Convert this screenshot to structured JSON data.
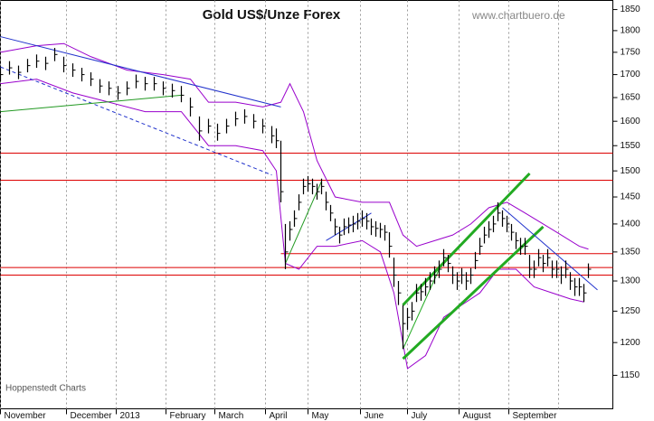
{
  "chart_data": {
    "type": "ohlc",
    "title": "Gold US$/Unze Forex",
    "watermark": "www.chartbuero.de",
    "source": "Hoppenstedt Charts",
    "log_scale": true,
    "xlim": [
      0,
      135.4
    ],
    "ylim": [
      1101,
      1872
    ],
    "yticks": [
      1150,
      1200,
      1250,
      1300,
      1350,
      1400,
      1450,
      1500,
      1550,
      1600,
      1650,
      1700,
      1750,
      1800,
      1850
    ],
    "xticks": [
      {
        "value": 0,
        "label": "November"
      },
      {
        "value": 14.6,
        "label": "December"
      },
      {
        "value": 25.6,
        "label": "2013"
      },
      {
        "value": 36.6,
        "label": "February"
      },
      {
        "value": 47.4,
        "label": "March"
      },
      {
        "value": 58.6,
        "label": "April"
      },
      {
        "value": 68,
        "label": "May"
      },
      {
        "value": 79.6,
        "label": "June"
      },
      {
        "value": 90,
        "label": "July"
      },
      {
        "value": 101.4,
        "label": "August"
      },
      {
        "value": 112.4,
        "label": "September"
      }
    ],
    "xgrid": [
      123.4
    ],
    "color": "#000000",
    "x": [
      0,
      2,
      4,
      6,
      8,
      10,
      12,
      14,
      16,
      18,
      20,
      22,
      24,
      26,
      28,
      30,
      32,
      34,
      36,
      38,
      40,
      42,
      44,
      46,
      48,
      50,
      52,
      54,
      56,
      58,
      60,
      61,
      62,
      63,
      64,
      65,
      66,
      67,
      68,
      69,
      70,
      71,
      72,
      73,
      74,
      75,
      76,
      77,
      78,
      79,
      80,
      81,
      82,
      83,
      84,
      85,
      86,
      87,
      88,
      89,
      90,
      91,
      92,
      93,
      94,
      95,
      96,
      97,
      98,
      99,
      100,
      101,
      102,
      103,
      104,
      105,
      106,
      107,
      108,
      109,
      110,
      111,
      112,
      113,
      114,
      115,
      116,
      117,
      118,
      119,
      120,
      121,
      122,
      123,
      124,
      125,
      126,
      127,
      128,
      129,
      130
    ],
    "close": [
      1700,
      1715,
      1705,
      1720,
      1730,
      1725,
      1745,
      1720,
      1710,
      1700,
      1690,
      1675,
      1670,
      1660,
      1670,
      1685,
      1680,
      1680,
      1670,
      1665,
      1655,
      1630,
      1580,
      1590,
      1575,
      1590,
      1605,
      1610,
      1600,
      1590,
      1570,
      1560,
      1460,
      1350,
      1390,
      1410,
      1440,
      1470,
      1475,
      1470,
      1460,
      1470,
      1440,
      1420,
      1395,
      1380,
      1395,
      1398,
      1400,
      1405,
      1410,
      1405,
      1395,
      1392,
      1390,
      1385,
      1360,
      1310,
      1280,
      1230,
      1240,
      1250,
      1280,
      1282,
      1290,
      1300,
      1310,
      1320,
      1340,
      1330,
      1310,
      1300,
      1310,
      1300,
      1310,
      1335,
      1360,
      1380,
      1390,
      1400,
      1420,
      1410,
      1400,
      1385,
      1370,
      1360,
      1360,
      1320,
      1320,
      1340,
      1330,
      1340,
      1320,
      1320,
      1310,
      1320,
      1300,
      1290,
      1290,
      1280,
      1320
    ],
    "high": [
      1715,
      1730,
      1720,
      1735,
      1745,
      1740,
      1760,
      1740,
      1725,
      1715,
      1705,
      1690,
      1685,
      1675,
      1685,
      1700,
      1695,
      1695,
      1685,
      1680,
      1675,
      1650,
      1610,
      1605,
      1595,
      1605,
      1620,
      1625,
      1615,
      1605,
      1590,
      1585,
      1560,
      1400,
      1405,
      1425,
      1455,
      1485,
      1490,
      1485,
      1475,
      1485,
      1460,
      1435,
      1410,
      1395,
      1410,
      1412,
      1415,
      1420,
      1425,
      1420,
      1410,
      1405,
      1402,
      1398,
      1385,
      1340,
      1300,
      1260,
      1255,
      1265,
      1295,
      1295,
      1305,
      1315,
      1325,
      1335,
      1355,
      1345,
      1325,
      1315,
      1322,
      1315,
      1322,
      1350,
      1375,
      1395,
      1405,
      1415,
      1440,
      1425,
      1415,
      1400,
      1385,
      1375,
      1375,
      1345,
      1335,
      1355,
      1345,
      1355,
      1335,
      1335,
      1325,
      1335,
      1315,
      1305,
      1305,
      1295,
      1330
    ],
    "low": [
      1685,
      1700,
      1690,
      1705,
      1715,
      1710,
      1730,
      1705,
      1695,
      1685,
      1675,
      1660,
      1655,
      1645,
      1655,
      1670,
      1665,
      1665,
      1655,
      1650,
      1640,
      1610,
      1560,
      1575,
      1560,
      1575,
      1590,
      1595,
      1585,
      1575,
      1555,
      1545,
      1440,
      1320,
      1370,
      1395,
      1425,
      1455,
      1460,
      1455,
      1445,
      1455,
      1425,
      1405,
      1380,
      1365,
      1380,
      1383,
      1385,
      1390,
      1395,
      1390,
      1380,
      1377,
      1375,
      1370,
      1340,
      1290,
      1260,
      1190,
      1220,
      1235,
      1265,
      1267,
      1275,
      1285,
      1295,
      1305,
      1325,
      1315,
      1295,
      1285,
      1295,
      1285,
      1295,
      1320,
      1345,
      1365,
      1375,
      1385,
      1405,
      1395,
      1385,
      1370,
      1355,
      1345,
      1345,
      1305,
      1305,
      1325,
      1315,
      1325,
      1305,
      1305,
      1295,
      1305,
      1285,
      1275,
      1275,
      1265,
      1305
    ],
    "bands": [
      {
        "color": "#9900cc",
        "x": [
          0,
          8,
          14,
          20,
          28,
          36,
          42,
          46,
          52,
          58,
          62,
          64,
          67,
          70,
          74,
          80,
          86,
          89,
          92,
          96,
          100,
          104,
          108,
          112,
          116,
          120,
          124,
          128,
          130
        ],
        "values": [
          1750,
          1765,
          1770,
          1740,
          1710,
          1700,
          1690,
          1640,
          1640,
          1630,
          1640,
          1680,
          1620,
          1520,
          1450,
          1440,
          1440,
          1380,
          1360,
          1370,
          1380,
          1400,
          1430,
          1440,
          1420,
          1400,
          1380,
          1360,
          1355
        ]
      },
      {
        "color": "#9900cc",
        "x": [
          0,
          8,
          16,
          24,
          32,
          40,
          46,
          52,
          58,
          61,
          63,
          66,
          70,
          74,
          80,
          84,
          87,
          90,
          94,
          98,
          102,
          106,
          110,
          114,
          118,
          122,
          126,
          129
        ],
        "values": [
          1680,
          1690,
          1660,
          1640,
          1620,
          1620,
          1550,
          1550,
          1540,
          1500,
          1330,
          1320,
          1360,
          1360,
          1370,
          1350,
          1280,
          1160,
          1180,
          1240,
          1260,
          1280,
          1320,
          1320,
          1290,
          1280,
          1270,
          1265
        ]
      }
    ],
    "levels": [
      {
        "value": 1535,
        "color": "#dd0000",
        "from": 0
      },
      {
        "value": 1482,
        "color": "#dd0000",
        "from": 0
      },
      {
        "value": 1347,
        "color": "#dd0000",
        "from": 62
      },
      {
        "value": 1323,
        "color": "#dd0000",
        "from": 0
      },
      {
        "value": 1310,
        "color": "#dd0000",
        "from": 0
      }
    ],
    "trendlines": [
      {
        "color": "#2233cc",
        "dashed": false,
        "width": 1,
        "x": [
          0,
          62
        ],
        "values": [
          1786,
          1630
        ]
      },
      {
        "color": "#2233cc",
        "dashed": true,
        "width": 1,
        "x": [
          0,
          60
        ],
        "values": [
          1717,
          1492
        ]
      },
      {
        "color": "#229922",
        "dashed": false,
        "width": 1,
        "x": [
          0,
          40
        ],
        "values": [
          1620,
          1655
        ]
      },
      {
        "color": "#229922",
        "dashed": false,
        "width": 1,
        "x": [
          63,
          71
        ],
        "values": [
          1330,
          1480
        ]
      },
      {
        "color": "#22aa22",
        "dashed": false,
        "width": 3,
        "x": [
          89,
          117
        ],
        "values": [
          1260,
          1495
        ]
      },
      {
        "color": "#22aa22",
        "dashed": false,
        "width": 3,
        "x": [
          89,
          120
        ],
        "values": [
          1175,
          1395
        ]
      },
      {
        "color": "#22aa22",
        "dashed": false,
        "width": 1,
        "x": [
          89,
          97
        ],
        "values": [
          1190,
          1320
        ]
      },
      {
        "color": "#2233cc",
        "dashed": false,
        "width": 1,
        "x": [
          111,
          132
        ],
        "values": [
          1430,
          1285
        ]
      },
      {
        "color": "#2233cc",
        "dashed": false,
        "width": 1,
        "x": [
          72,
          82
        ],
        "values": [
          1370,
          1420
        ]
      }
    ]
  }
}
